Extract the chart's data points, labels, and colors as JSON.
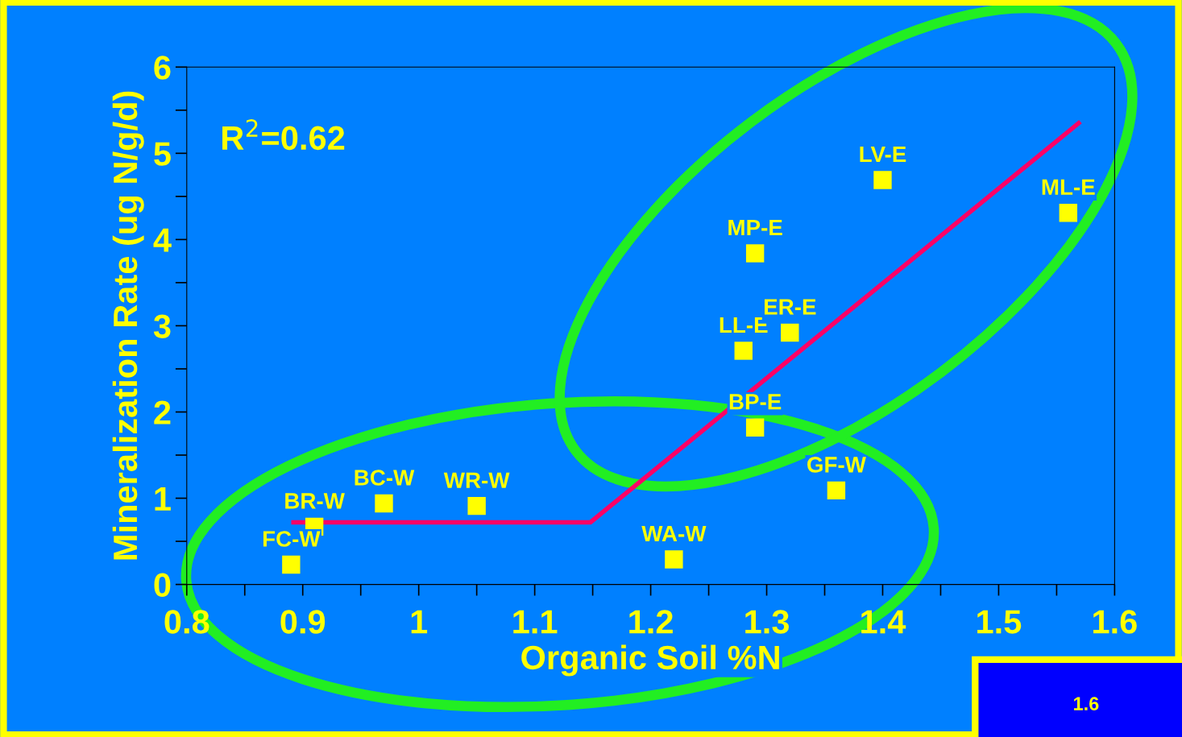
{
  "chart_data": {
    "type": "scatter",
    "xlabel": "Organic Soil %N",
    "ylabel": "Mineralization Rate (ug N/g/d)",
    "xlim": [
      0.8,
      1.6
    ],
    "xticks": [
      0.8,
      0.9,
      1,
      1.1,
      1.2,
      1.3,
      1.4,
      1.5,
      1.6
    ],
    "ylim": [
      0,
      6
    ],
    "yticks": [
      0,
      1,
      2,
      3,
      4,
      5,
      6
    ],
    "grid": false,
    "legend": false,
    "series": [
      {
        "marker": "square",
        "color": "#ffff00",
        "x": [
          0.89,
          0.91,
          0.97,
          1.05,
          1.22,
          1.36,
          1.29,
          1.28,
          1.32,
          1.29,
          1.4,
          1.56
        ],
        "values": [
          0.23,
          0.67,
          0.94,
          0.91,
          0.29,
          1.09,
          1.82,
          2.71,
          2.92,
          3.84,
          4.69,
          4.31
        ]
      },
      {
        "type": "line",
        "color": "#ff0066",
        "x": [
          0.892,
          1.148,
          1.569
        ],
        "values": [
          0.72,
          0.72,
          5.35
        ]
      }
    ],
    "annotations": [
      "R$^{2}$=0.62",
      "1.6",
      {
        "text": "FC-W",
        "x": 0.89,
        "y": 0.23
      },
      {
        "text": "BR-W",
        "x": 0.91,
        "y": 0.67
      },
      {
        "text": "BC-W",
        "x": 0.97,
        "y": 0.94
      },
      {
        "text": "WR-W",
        "x": 1.05,
        "y": 0.91
      },
      {
        "text": "WA-W",
        "x": 1.22,
        "y": 0.29
      },
      {
        "text": "GF-W",
        "x": 1.36,
        "y": 1.09
      },
      {
        "text": "BP-E",
        "x": 1.29,
        "y": 1.82
      },
      {
        "text": "LL-E",
        "x": 1.28,
        "y": 2.71
      },
      {
        "text": "ER-E",
        "x": 1.32,
        "y": 2.92
      },
      {
        "text": "MP-E",
        "x": 1.29,
        "y": 3.84
      },
      {
        "text": "LV-E",
        "x": 1.4,
        "y": 4.69
      },
      {
        "text": "ML-E",
        "x": 1.56,
        "y": 4.31
      }
    ]
  }
}
